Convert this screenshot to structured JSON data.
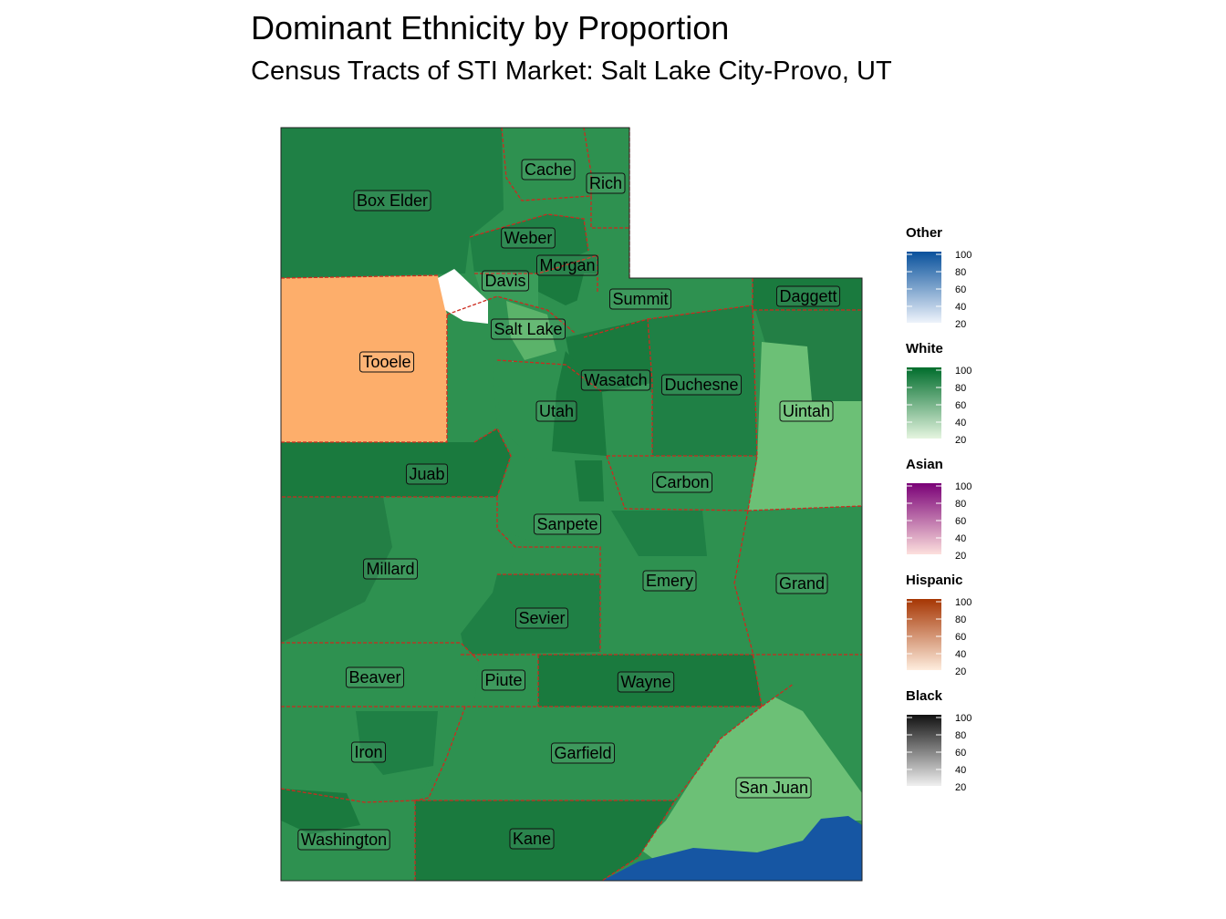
{
  "title": "Dominant Ethnicity by Proportion",
  "subtitle": "Census Tracts of STI Market: Salt Lake City-Provo, UT",
  "colors": {
    "county_border": "#cc2a1e",
    "tooele": "#fdae6b",
    "white_dark": "#1a7a3e",
    "white_mid": "#2e9150",
    "white_light": "#6cc076",
    "white_pale": "#a5dba4",
    "other_blue": "#1656a3",
    "no_data": "#ffffff"
  },
  "counties": [
    {
      "name": "Cache"
    },
    {
      "name": "Rich"
    },
    {
      "name": "Box Elder"
    },
    {
      "name": "Weber"
    },
    {
      "name": "Morgan"
    },
    {
      "name": "Davis"
    },
    {
      "name": "Summit"
    },
    {
      "name": "Daggett"
    },
    {
      "name": "Salt Lake"
    },
    {
      "name": "Tooele"
    },
    {
      "name": "Wasatch"
    },
    {
      "name": "Duchesne"
    },
    {
      "name": "Uintah"
    },
    {
      "name": "Utah"
    },
    {
      "name": "Juab"
    },
    {
      "name": "Carbon"
    },
    {
      "name": "Sanpete"
    },
    {
      "name": "Millard"
    },
    {
      "name": "Emery"
    },
    {
      "name": "Grand"
    },
    {
      "name": "Sevier"
    },
    {
      "name": "Beaver"
    },
    {
      "name": "Piute"
    },
    {
      "name": "Wayne"
    },
    {
      "name": "Iron"
    },
    {
      "name": "Garfield"
    },
    {
      "name": "San Juan"
    },
    {
      "name": "Washington"
    },
    {
      "name": "Kane"
    }
  ],
  "legend": [
    {
      "title": "Other",
      "ticks": [
        "100",
        "80",
        "60",
        "40",
        "20"
      ],
      "color_low": "#eef3fb",
      "color_high": "#08519c"
    },
    {
      "title": "White",
      "ticks": [
        "100",
        "80",
        "60",
        "40",
        "20"
      ],
      "color_low": "#e5f5e0",
      "color_high": "#006d2c"
    },
    {
      "title": "Asian",
      "ticks": [
        "100",
        "80",
        "60",
        "40",
        "20"
      ],
      "color_low": "#fde0dd",
      "color_high": "#7a0177"
    },
    {
      "title": "Hispanic",
      "ticks": [
        "100",
        "80",
        "60",
        "40",
        "20"
      ],
      "color_low": "#feedde",
      "color_high": "#a63603"
    },
    {
      "title": "Black",
      "ticks": [
        "100",
        "80",
        "60",
        "40",
        "20"
      ],
      "color_low": "#f0f0f0",
      "color_high": "#111111"
    }
  ]
}
